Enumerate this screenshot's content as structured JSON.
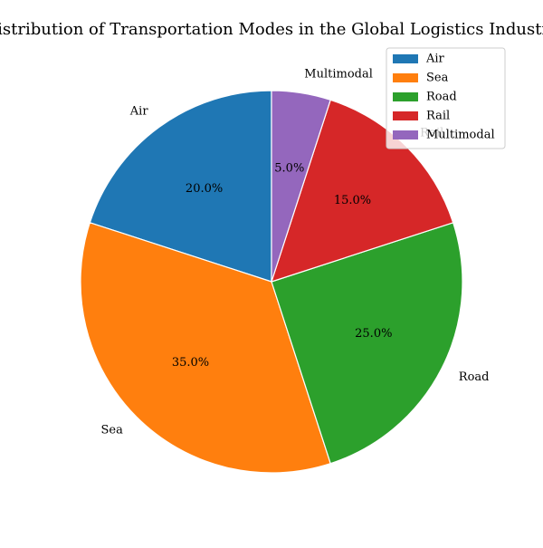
{
  "chart_data": {
    "type": "pie",
    "title": "Distribution of Transportation Modes in the Global Logistics Industry",
    "categories": [
      "Air",
      "Sea",
      "Road",
      "Rail",
      "Multimodal"
    ],
    "values": [
      20.0,
      35.0,
      25.0,
      15.0,
      5.0
    ],
    "percent_labels": [
      "20.0%",
      "35.0%",
      "25.0%",
      "15.0%",
      "5.0%"
    ],
    "colors": [
      "#1f77b4",
      "#ff7f0e",
      "#2ca02c",
      "#d62728",
      "#9467bd"
    ],
    "start_angle_deg": 90,
    "direction": "counterclockwise",
    "legend": {
      "placement": "top-right",
      "entries": [
        "Air",
        "Sea",
        "Road",
        "Rail",
        "Multimodal"
      ]
    }
  }
}
